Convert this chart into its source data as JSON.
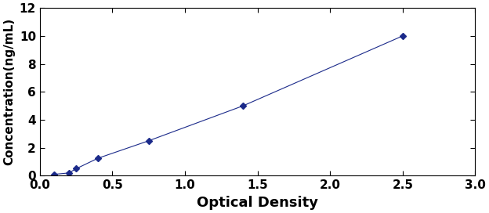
{
  "x_data": [
    0.1,
    0.2,
    0.25,
    0.4,
    0.75,
    1.4,
    2.5
  ],
  "y_data": [
    0.1,
    0.2,
    0.5,
    1.25,
    2.5,
    5.0,
    10.0
  ],
  "line_color": "#1B2A8A",
  "marker_color": "#1B2A8A",
  "marker_style": "D",
  "marker_size": 4,
  "line_width": 0.8,
  "line_style": "-",
  "xlabel": "Optical Density",
  "ylabel": "Concentration(ng/mL)",
  "xlim": [
    0,
    3
  ],
  "ylim": [
    0,
    12
  ],
  "xticks": [
    0,
    0.5,
    1,
    1.5,
    2,
    2.5,
    3
  ],
  "yticks": [
    0,
    2,
    4,
    6,
    8,
    10,
    12
  ],
  "xlabel_fontsize": 13,
  "ylabel_fontsize": 11,
  "tick_fontsize": 11,
  "xlabel_fontweight": "bold",
  "ylabel_fontweight": "bold",
  "tick_fontweight": "bold",
  "background_color": "#ffffff"
}
